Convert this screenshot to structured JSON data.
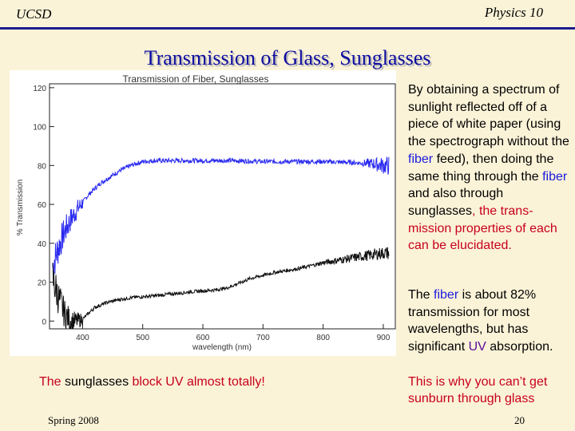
{
  "header": {
    "left": "UCSD",
    "right": "Physics 10"
  },
  "title": "Transmission of Glass, Sunglasses",
  "description": {
    "p1_a": "By obtaining a spectrum of sunlight reflected off of a piece of white paper (using the spectrograph without the ",
    "p1_fiber1": "fiber",
    "p1_b": " feed), then doing the same thing through the ",
    "p1_fiber2": "fiber",
    "p1_c": " and also through sunglasses",
    "p1_d": ", the trans-mission properties of each can be elucidated.",
    "p2_a": "The ",
    "p2_fiber": "fiber",
    "p2_b": " is about 82% transmission for most wavelengths, but has significant ",
    "p2_uv": "UV",
    "p2_c": " absorption."
  },
  "note_left": {
    "a": "The ",
    "b": "sunglasses",
    "c": " block UV almost totally!"
  },
  "note_right": "This is why you can’t get sunburn through glass",
  "footer": {
    "left": "Spring 2008",
    "right": "20"
  },
  "colors": {
    "fiber_series": "#2a2af0",
    "sunglasses_series": "#111111",
    "title": "#0c0ca0",
    "accent_red": "#c8001c"
  },
  "chart_data": {
    "type": "line",
    "title": "Transmission of Fiber, Sunglasses",
    "xlabel": "wavelength (nm)",
    "ylabel": "% Transmission",
    "xlim": [
      345,
      920
    ],
    "ylim": [
      -4,
      122
    ],
    "xticks": [
      400,
      500,
      600,
      700,
      800,
      900
    ],
    "yticks": [
      0,
      20,
      40,
      60,
      80,
      100,
      120
    ],
    "grid": false,
    "series": [
      {
        "x": [
          350,
          360,
          370,
          380,
          390,
          400,
          410,
          420,
          430,
          440,
          450,
          460,
          470,
          480,
          490,
          500,
          520,
          540,
          560,
          580,
          600,
          650,
          700,
          750,
          800,
          850,
          880,
          900,
          910
        ],
        "values": [
          28,
          38,
          46,
          52,
          57,
          61,
          65,
          68,
          71,
          73,
          75,
          77,
          78.5,
          80,
          81,
          82,
          82.5,
          82.5,
          82.5,
          82.5,
          82.5,
          82.5,
          82,
          82,
          82,
          81.5,
          81,
          80,
          80
        ]
      },
      {
        "x": [
          350,
          360,
          370,
          380,
          390,
          400,
          410,
          420,
          440,
          460,
          480,
          500,
          520,
          550,
          580,
          600,
          620,
          640,
          660,
          680,
          700,
          720,
          740,
          760,
          780,
          800,
          820,
          840,
          860,
          880,
          900,
          910
        ],
        "values": [
          22,
          12,
          4,
          0,
          0,
          1,
          4,
          7,
          9.5,
          11,
          12,
          12.5,
          13,
          14,
          15,
          15.5,
          16,
          17,
          19.5,
          22,
          23.5,
          25,
          26,
          27,
          28.5,
          30,
          31,
          32,
          33,
          34,
          35,
          35
        ]
      }
    ]
  }
}
